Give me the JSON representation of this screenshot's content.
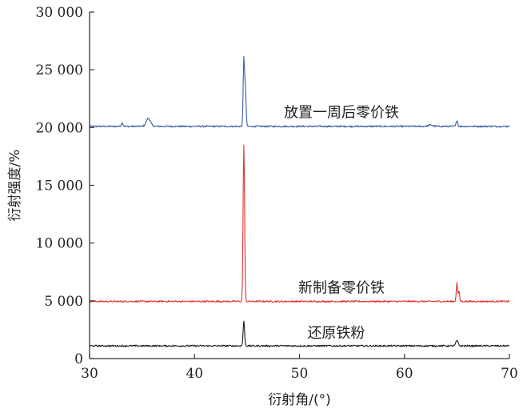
{
  "chart_data": {
    "type": "line",
    "title": "",
    "xlabel": "衍射角/(°)",
    "ylabel": "衍射强度/%",
    "xlim": [
      30,
      70
    ],
    "ylim": [
      0,
      30000
    ],
    "x_ticks": [
      30,
      40,
      50,
      60,
      70
    ],
    "x_tick_labels": [
      "30",
      "40",
      "50",
      "60",
      "70"
    ],
    "y_ticks": [
      0,
      5000,
      10000,
      15000,
      20000,
      25000,
      30000
    ],
    "y_tick_labels": [
      "0",
      "5 000",
      "10 000",
      "15 000",
      "20 000",
      "25 000",
      "30 000"
    ],
    "grid": false,
    "legend": "none",
    "series": [
      {
        "name": "放置一周后零价铁",
        "color": "#3b5ba9",
        "baseline": 20100,
        "label_pos": [
          54,
          20900
        ],
        "peaks": [
          {
            "x": 33.1,
            "h": 300,
            "w": 0.12
          },
          {
            "x": 35.6,
            "h": 700,
            "w": 0.28
          },
          {
            "x": 44.7,
            "h": 5900,
            "w": 0.09
          },
          {
            "x": 44.85,
            "h": 3200,
            "w": 0.09
          },
          {
            "x": 62.5,
            "h": 120,
            "w": 0.3
          },
          {
            "x": 65.0,
            "h": 550,
            "w": 0.1
          }
        ]
      },
      {
        "name": "新制备零价铁",
        "color": "#e0322e",
        "baseline": 4950,
        "label_pos": [
          54,
          5700
        ],
        "peaks": [
          {
            "x": 44.7,
            "h": 13600,
            "w": 0.1
          },
          {
            "x": 65.0,
            "h": 1600,
            "w": 0.09
          },
          {
            "x": 65.2,
            "h": 900,
            "w": 0.08
          }
        ]
      },
      {
        "name": "还原铁粉",
        "color": "#1a1a1a",
        "baseline": 1100,
        "label_pos": [
          53.5,
          1800
        ],
        "peaks": [
          {
            "x": 44.7,
            "h": 2100,
            "w": 0.1
          },
          {
            "x": 65.0,
            "h": 450,
            "w": 0.15
          }
        ]
      }
    ]
  }
}
